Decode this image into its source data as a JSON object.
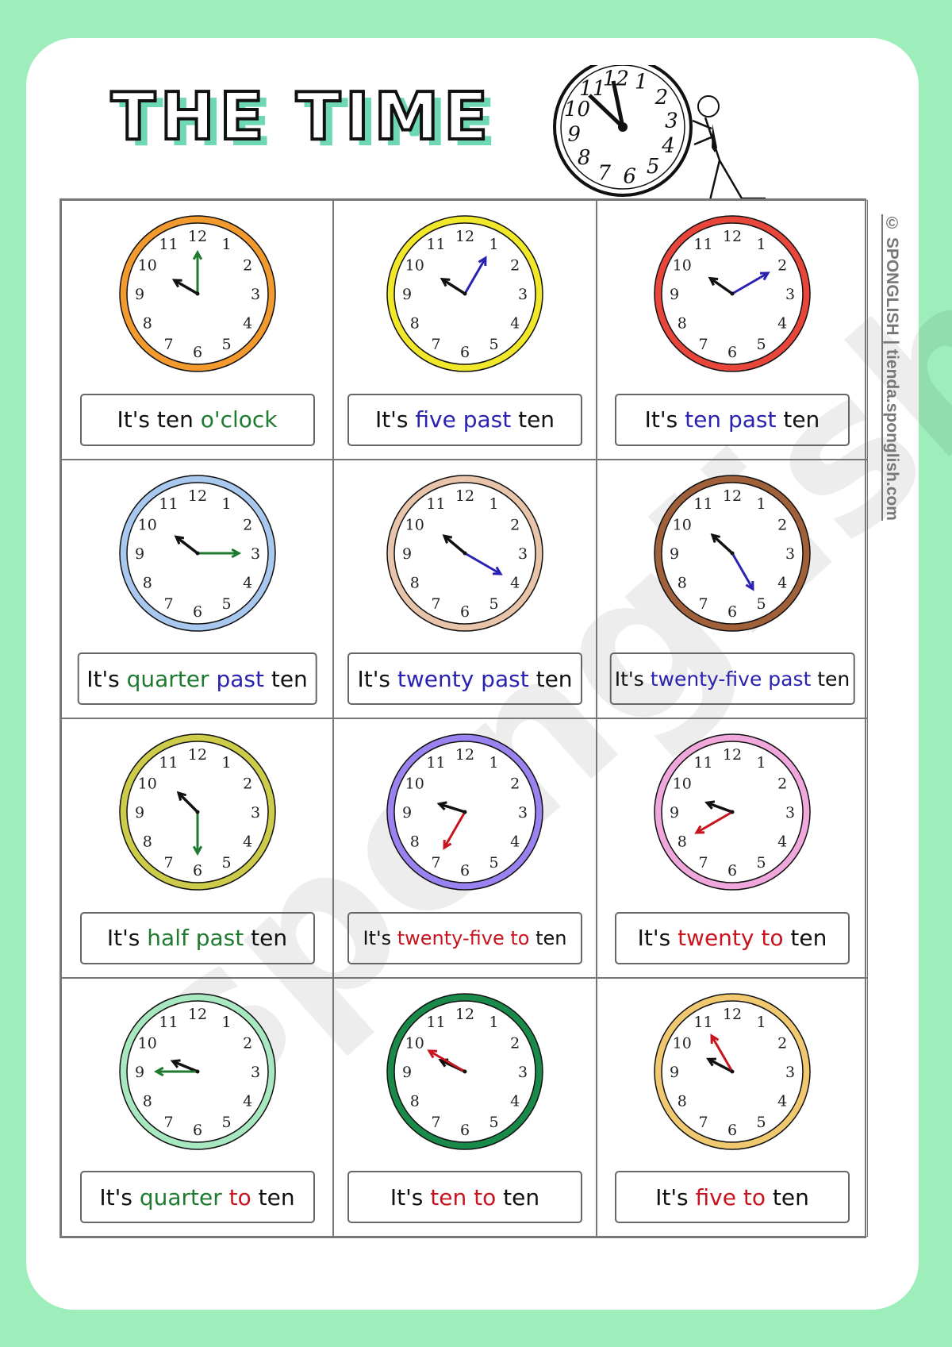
{
  "title": "THE TIME",
  "watermark": "sponglish",
  "credit": "© SPONGLISH | tienda.sponglish.com",
  "colors": {
    "background": "#9eeebb",
    "title_shadow": "#6dd8b2",
    "green": "#1e7a2e",
    "blue": "#2a22b0",
    "red": "#c8141e"
  },
  "clocks": [
    {
      "time": "10:00",
      "ring": "#f29a2e",
      "hand": "green",
      "label": [
        [
          "It's ",
          ""
        ],
        [
          "o'clock",
          "green"
        ]
      ],
      "label_parts": [
        "It's ten ",
        "o'clock"
      ]
    },
    {
      "time": "10:05",
      "ring": "#f2e82a",
      "hand": "blue",
      "label_parts": [
        "It's ",
        "five past",
        " ten"
      ]
    },
    {
      "time": "10:10",
      "ring": "#e8463a",
      "hand": "blue",
      "label_parts": [
        "It's ",
        "ten past",
        " ten"
      ]
    },
    {
      "time": "10:15",
      "ring": "#a8c8f0",
      "hand": "green",
      "label_parts": [
        "It's ",
        "quarter",
        " ",
        "past",
        " ten"
      ]
    },
    {
      "time": "10:20",
      "ring": "#e8c4aa",
      "hand": "blue",
      "label_parts": [
        "It's ",
        "twenty past",
        " ten"
      ]
    },
    {
      "time": "10:25",
      "ring": "#a0603a",
      "hand": "blue",
      "label_parts": [
        "It's ",
        "twenty-five past",
        " ten"
      ]
    },
    {
      "time": "10:30",
      "ring": "#cccc4a",
      "hand": "green",
      "label_parts": [
        "It's ",
        "half past",
        " ten"
      ]
    },
    {
      "time": "9:35",
      "ring": "#9a82f0",
      "hand": "red",
      "label_parts": [
        "It's ",
        "twenty-five to",
        " ten"
      ]
    },
    {
      "time": "9:40",
      "ring": "#f0a8dc",
      "hand": "red",
      "label_parts": [
        "It's ",
        "twenty to",
        " ten"
      ]
    },
    {
      "time": "9:45",
      "ring": "#a8e8c0",
      "hand": "green",
      "label_parts": [
        "It's ",
        "quarter",
        " ",
        "to",
        " ten"
      ]
    },
    {
      "time": "9:50",
      "ring": "#1a8a4a",
      "hand": "red",
      "label_parts": [
        "It's ",
        "ten to",
        " ten"
      ]
    },
    {
      "time": "9:55",
      "ring": "#f0c870",
      "hand": "red",
      "label_parts": [
        "It's ",
        "five to",
        " ten"
      ]
    }
  ],
  "label_colors": [
    [
      "",
      "green"
    ],
    [
      "",
      "blue",
      ""
    ],
    [
      "",
      "blue",
      ""
    ],
    [
      "",
      "green",
      "",
      "blue",
      ""
    ],
    [
      "",
      "blue",
      ""
    ],
    [
      "",
      "blue",
      ""
    ],
    [
      "",
      "green",
      ""
    ],
    [
      "",
      "red",
      ""
    ],
    [
      "",
      "red",
      ""
    ],
    [
      "",
      "green",
      "",
      "red",
      ""
    ],
    [
      "",
      "red",
      ""
    ],
    [
      "",
      "red",
      ""
    ]
  ],
  "clock_numbers": [
    "12",
    "1",
    "2",
    "3",
    "4",
    "5",
    "6",
    "7",
    "8",
    "9",
    "10",
    "11"
  ]
}
